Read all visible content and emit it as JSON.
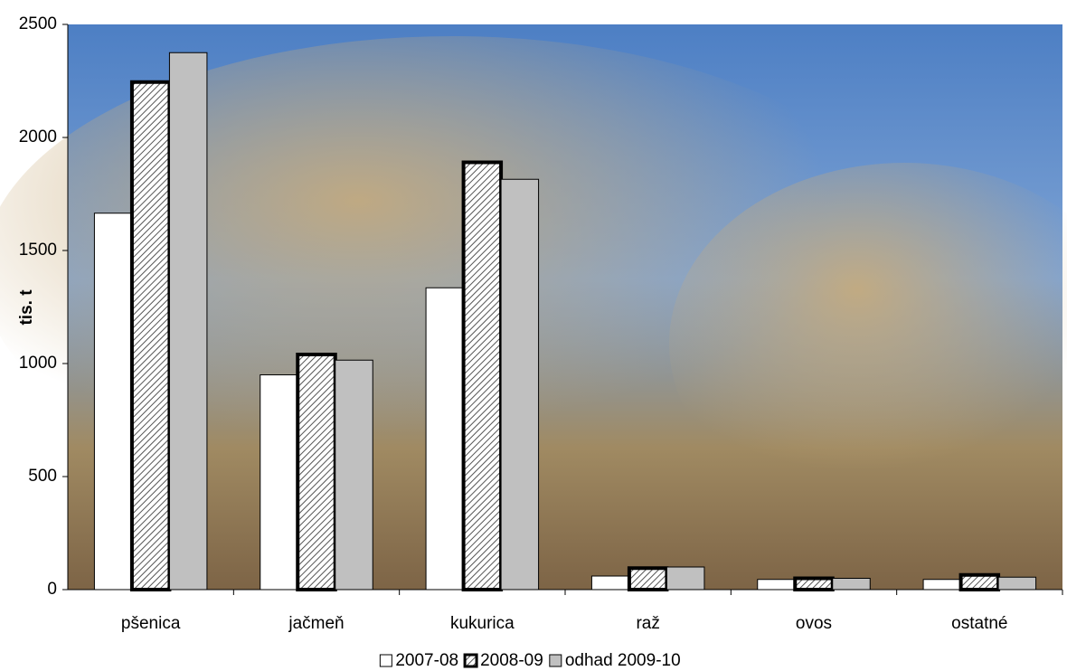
{
  "chart_data": {
    "type": "bar",
    "y_label": "tis. t",
    "categories": [
      "pšenica",
      "jačmeň",
      "kukurica",
      "raž",
      "ovos",
      "ostatné"
    ],
    "series": [
      {
        "name": "2007-08",
        "color": "#ffffff",
        "values": [
          1665,
          950,
          1335,
          60,
          45,
          45
        ]
      },
      {
        "name": "2008-09",
        "color": "#d9d9d9",
        "pattern": "hatch",
        "values": [
          2245,
          1040,
          1890,
          95,
          50,
          65
        ]
      },
      {
        "name": "odhad 2009-10",
        "color": "#c0c0c0",
        "values": [
          2375,
          1015,
          1815,
          100,
          50,
          55
        ]
      }
    ],
    "ylim": [
      0,
      2500
    ],
    "yticks": [
      0,
      500,
      1000,
      1500,
      2000,
      2500
    ],
    "legend": "bottom"
  }
}
